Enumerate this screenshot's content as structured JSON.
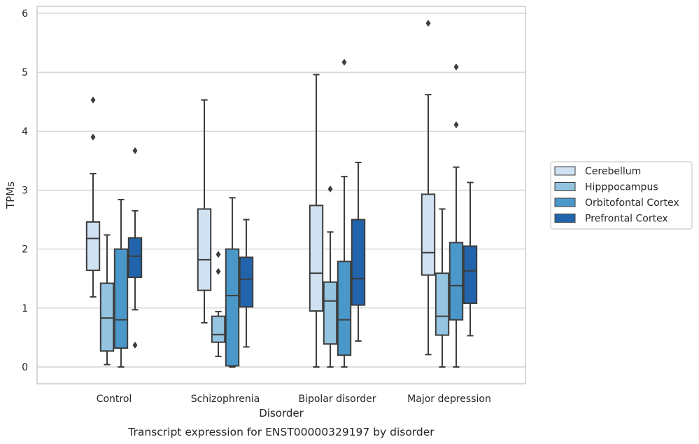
{
  "chart_data": {
    "type": "box",
    "title": "",
    "caption": "Transcript expression for ENST00000329197 by disorder",
    "xlabel": "Disorder",
    "ylabel": "TPMs",
    "ylim": [
      -0.28,
      6.1
    ],
    "yticks": [
      0,
      1,
      2,
      3,
      4,
      5,
      6
    ],
    "grid": "horizontal",
    "legend_position": "right",
    "categories": [
      "Control",
      "Schizophrenia",
      "Bipolar disorder",
      "Major depression"
    ],
    "series": [
      {
        "name": "Cerebellum",
        "color": "#d0e1f2",
        "boxes": [
          {
            "whisker_low": 1.19,
            "q1": 1.64,
            "median": 2.18,
            "q3": 2.46,
            "whisker_high": 3.28,
            "outliers": [
              4.53,
              3.9
            ]
          },
          {
            "whisker_low": 0.75,
            "q1": 1.3,
            "median": 1.82,
            "q3": 2.68,
            "whisker_high": 4.53,
            "outliers": []
          },
          {
            "whisker_low": 0.0,
            "q1": 0.95,
            "median": 1.59,
            "q3": 2.74,
            "whisker_high": 4.96,
            "outliers": []
          },
          {
            "whisker_low": 0.21,
            "q1": 1.56,
            "median": 1.94,
            "q3": 2.93,
            "whisker_high": 4.62,
            "outliers": [
              5.83
            ]
          }
        ]
      },
      {
        "name": "Hipppocampus",
        "color": "#94c4df",
        "boxes": [
          {
            "whisker_low": 0.04,
            "q1": 0.27,
            "median": 0.83,
            "q3": 1.42,
            "whisker_high": 2.24,
            "outliers": []
          },
          {
            "whisker_low": 0.18,
            "q1": 0.42,
            "median": 0.55,
            "q3": 0.86,
            "whisker_high": 0.94,
            "outliers": [
              1.91,
              1.62
            ]
          },
          {
            "whisker_low": 0.0,
            "q1": 0.39,
            "median": 1.12,
            "q3": 1.44,
            "whisker_high": 2.29,
            "outliers": [
              3.02
            ]
          },
          {
            "whisker_low": 0.0,
            "q1": 0.54,
            "median": 0.86,
            "q3": 1.59,
            "whisker_high": 2.68,
            "outliers": []
          }
        ]
      },
      {
        "name": "Orbitofontal Cortex",
        "color": "#4a98c9",
        "boxes": [
          {
            "whisker_low": 0.0,
            "q1": 0.32,
            "median": 0.8,
            "q3": 2.0,
            "whisker_high": 2.84,
            "outliers": []
          },
          {
            "whisker_low": 0.0,
            "q1": 0.02,
            "median": 1.21,
            "q3": 2.0,
            "whisker_high": 2.87,
            "outliers": []
          },
          {
            "whisker_low": 0.0,
            "q1": 0.2,
            "median": 0.8,
            "q3": 1.79,
            "whisker_high": 3.23,
            "outliers": [
              5.17
            ]
          },
          {
            "whisker_low": 0.0,
            "q1": 0.8,
            "median": 1.38,
            "q3": 2.11,
            "whisker_high": 3.39,
            "outliers": [
              5.09,
              4.11
            ]
          }
        ]
      },
      {
        "name": "Prefrontal Cortex",
        "color": "#2164ab",
        "boxes": [
          {
            "whisker_low": 0.97,
            "q1": 1.52,
            "median": 1.88,
            "q3": 2.19,
            "whisker_high": 2.65,
            "outliers": [
              3.67,
              0.37
            ]
          },
          {
            "whisker_low": 0.34,
            "q1": 1.02,
            "median": 1.49,
            "q3": 1.86,
            "whisker_high": 2.5,
            "outliers": []
          },
          {
            "whisker_low": 0.44,
            "q1": 1.05,
            "median": 1.5,
            "q3": 2.5,
            "whisker_high": 3.47,
            "outliers": []
          },
          {
            "whisker_low": 0.53,
            "q1": 1.08,
            "median": 1.63,
            "q3": 2.05,
            "whisker_high": 3.13,
            "outliers": []
          }
        ]
      }
    ]
  }
}
